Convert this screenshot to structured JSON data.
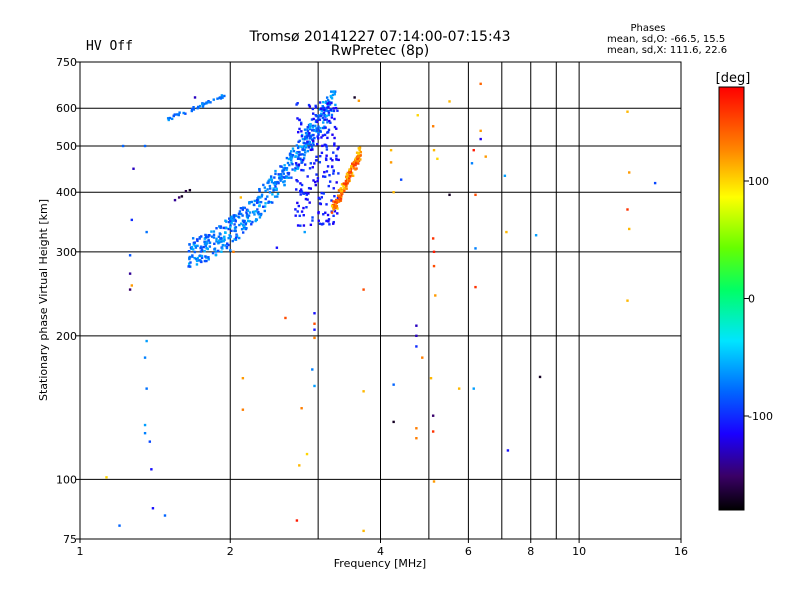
{
  "header": {
    "title_line1": "Tromsø 20141227 07:14:00-07:15:43",
    "title_line2": "RwPretec (8p)",
    "hv_status": "HV Off",
    "hv_color": "#cc0000",
    "stats_title": "Phases",
    "stats_line1": "mean, sd,O: -66.5, 15.5",
    "stats_line2": "mean, sd,X: 111.6, 22.6"
  },
  "colorbar": {
    "label": "[deg]",
    "min": -180,
    "max": 180,
    "ticks": [
      {
        "value": 100,
        "label": "100"
      },
      {
        "value": 0,
        "label": "0"
      },
      {
        "value": -100,
        "label": "-100"
      }
    ]
  },
  "chart_data": {
    "type": "scatter",
    "title": "Tromsø 20141227 07:14:00-07:15:43",
    "subtitle": "RwPretec (8p)",
    "xlabel": "Frequency [MHz]",
    "ylabel": "Stationary phase Virtual Height [km]",
    "x_scale": "log",
    "y_scale": "log",
    "xlim": [
      1,
      16
    ],
    "ylim": [
      75,
      750
    ],
    "x_ticks": [
      1,
      2,
      4,
      6,
      8,
      10,
      16
    ],
    "y_ticks": [
      75,
      100,
      200,
      300,
      400,
      500,
      600,
      750
    ],
    "x_grid": [
      1,
      2,
      3,
      4,
      5,
      6,
      7,
      8,
      9,
      10,
      16
    ],
    "y_grid": [
      100,
      200,
      300,
      400,
      500,
      600
    ],
    "color_variable": "phase [deg]",
    "color_range": [
      -180,
      180
    ],
    "clusters": [
      {
        "description": "O-trace lower",
        "x_range": [
          1.65,
          3.25
        ],
        "y_range": [
          300,
          640
        ],
        "phase_range": [
          -95,
          -50
        ],
        "count": 520
      },
      {
        "description": "O-trace dense core",
        "x_range": [
          2.7,
          3.3
        ],
        "y_range": [
          340,
          620
        ],
        "phase_range": [
          -120,
          -90
        ],
        "count": 200
      },
      {
        "description": "X-trace",
        "x_range": [
          3.2,
          3.65
        ],
        "y_range": [
          355,
          500
        ],
        "phase_range": [
          100,
          160
        ],
        "count": 160
      },
      {
        "description": "upper O-trace fragment",
        "x_range": [
          1.5,
          1.95
        ],
        "y_range": [
          570,
          640
        ],
        "phase_range": [
          -90,
          -60
        ],
        "count": 40
      }
    ],
    "points": [
      {
        "x": 1.22,
        "y": 500,
        "phase": -80
      },
      {
        "x": 1.28,
        "y": 448,
        "phase": -130
      },
      {
        "x": 1.35,
        "y": 500,
        "phase": -80
      },
      {
        "x": 1.27,
        "y": 350,
        "phase": -100
      },
      {
        "x": 1.36,
        "y": 330,
        "phase": -75
      },
      {
        "x": 1.26,
        "y": 295,
        "phase": -85
      },
      {
        "x": 1.26,
        "y": 270,
        "phase": -140
      },
      {
        "x": 1.27,
        "y": 255,
        "phase": 120
      },
      {
        "x": 1.26,
        "y": 250,
        "phase": -150
      },
      {
        "x": 1.36,
        "y": 195,
        "phase": -60
      },
      {
        "x": 1.35,
        "y": 180,
        "phase": -70
      },
      {
        "x": 1.36,
        "y": 155,
        "phase": -75
      },
      {
        "x": 1.35,
        "y": 130,
        "phase": -60
      },
      {
        "x": 1.35,
        "y": 125,
        "phase": -70
      },
      {
        "x": 1.38,
        "y": 120,
        "phase": -90
      },
      {
        "x": 1.39,
        "y": 105,
        "phase": -110
      },
      {
        "x": 1.13,
        "y": 101,
        "phase": 100
      },
      {
        "x": 1.4,
        "y": 87,
        "phase": -110
      },
      {
        "x": 1.48,
        "y": 84,
        "phase": -80
      },
      {
        "x": 1.2,
        "y": 80,
        "phase": -80
      },
      {
        "x": 1.55,
        "y": 385,
        "phase": -140
      },
      {
        "x": 1.58,
        "y": 390,
        "phase": -150
      },
      {
        "x": 1.6,
        "y": 392,
        "phase": -170
      },
      {
        "x": 1.63,
        "y": 402,
        "phase": -160
      },
      {
        "x": 1.66,
        "y": 404,
        "phase": -170
      },
      {
        "x": 1.7,
        "y": 632,
        "phase": -130
      },
      {
        "x": 2.1,
        "y": 390,
        "phase": 110
      },
      {
        "x": 2.03,
        "y": 300,
        "phase": 130
      },
      {
        "x": 2.48,
        "y": 306,
        "phase": -110
      },
      {
        "x": 2.0,
        "y": 302,
        "phase": -70
      },
      {
        "x": 2.82,
        "y": 330,
        "phase": -60
      },
      {
        "x": 2.95,
        "y": 223,
        "phase": -110
      },
      {
        "x": 2.95,
        "y": 212,
        "phase": 150
      },
      {
        "x": 2.95,
        "y": 206,
        "phase": -110
      },
      {
        "x": 2.95,
        "y": 198,
        "phase": 130
      },
      {
        "x": 2.58,
        "y": 218,
        "phase": 150
      },
      {
        "x": 2.92,
        "y": 170,
        "phase": -70
      },
      {
        "x": 2.95,
        "y": 157,
        "phase": -60
      },
      {
        "x": 2.12,
        "y": 163,
        "phase": 120
      },
      {
        "x": 2.12,
        "y": 140,
        "phase": 130
      },
      {
        "x": 2.78,
        "y": 141,
        "phase": 130
      },
      {
        "x": 2.75,
        "y": 107,
        "phase": 110
      },
      {
        "x": 2.85,
        "y": 113,
        "phase": 100
      },
      {
        "x": 2.72,
        "y": 82,
        "phase": 170
      },
      {
        "x": 3.55,
        "y": 632,
        "phase": -170
      },
      {
        "x": 3.62,
        "y": 622,
        "phase": 120
      },
      {
        "x": 3.7,
        "y": 250,
        "phase": 150
      },
      {
        "x": 3.7,
        "y": 153,
        "phase": 110
      },
      {
        "x": 3.7,
        "y": 78,
        "phase": 110
      },
      {
        "x": 4.2,
        "y": 490,
        "phase": 110
      },
      {
        "x": 4.2,
        "y": 462,
        "phase": 120
      },
      {
        "x": 4.4,
        "y": 425,
        "phase": -90
      },
      {
        "x": 4.25,
        "y": 400,
        "phase": 110
      },
      {
        "x": 4.25,
        "y": 158,
        "phase": -80
      },
      {
        "x": 4.25,
        "y": 132,
        "phase": -170
      },
      {
        "x": 4.75,
        "y": 580,
        "phase": 100
      },
      {
        "x": 4.72,
        "y": 210,
        "phase": -130
      },
      {
        "x": 4.72,
        "y": 200,
        "phase": -130
      },
      {
        "x": 4.72,
        "y": 190,
        "phase": -100
      },
      {
        "x": 4.85,
        "y": 180,
        "phase": 130
      },
      {
        "x": 4.72,
        "y": 128,
        "phase": 130
      },
      {
        "x": 4.72,
        "y": 122,
        "phase": 130
      },
      {
        "x": 5.1,
        "y": 550,
        "phase": 130
      },
      {
        "x": 5.12,
        "y": 490,
        "phase": 110
      },
      {
        "x": 5.2,
        "y": 470,
        "phase": 100
      },
      {
        "x": 5.1,
        "y": 320,
        "phase": 160
      },
      {
        "x": 5.12,
        "y": 300,
        "phase": 170
      },
      {
        "x": 5.12,
        "y": 280,
        "phase": 150
      },
      {
        "x": 5.15,
        "y": 243,
        "phase": 120
      },
      {
        "x": 5.05,
        "y": 163,
        "phase": 110
      },
      {
        "x": 5.1,
        "y": 136,
        "phase": -150
      },
      {
        "x": 5.1,
        "y": 126,
        "phase": 160
      },
      {
        "x": 5.12,
        "y": 99,
        "phase": 120
      },
      {
        "x": 5.5,
        "y": 620,
        "phase": 110
      },
      {
        "x": 5.5,
        "y": 395,
        "phase": -170
      },
      {
        "x": 5.75,
        "y": 155,
        "phase": 110
      },
      {
        "x": 6.1,
        "y": 460,
        "phase": -70
      },
      {
        "x": 6.15,
        "y": 490,
        "phase": 170
      },
      {
        "x": 6.2,
        "y": 395,
        "phase": 150
      },
      {
        "x": 6.2,
        "y": 305,
        "phase": -70
      },
      {
        "x": 6.2,
        "y": 253,
        "phase": 160
      },
      {
        "x": 6.15,
        "y": 155,
        "phase": -60
      },
      {
        "x": 6.35,
        "y": 675,
        "phase": 140
      },
      {
        "x": 6.35,
        "y": 538,
        "phase": 120
      },
      {
        "x": 6.35,
        "y": 517,
        "phase": -120
      },
      {
        "x": 6.5,
        "y": 475,
        "phase": 120
      },
      {
        "x": 7.1,
        "y": 433,
        "phase": -60
      },
      {
        "x": 7.15,
        "y": 330,
        "phase": 110
      },
      {
        "x": 7.2,
        "y": 115,
        "phase": -110
      },
      {
        "x": 8.2,
        "y": 325,
        "phase": -60
      },
      {
        "x": 8.35,
        "y": 164,
        "phase": -170
      },
      {
        "x": 12.5,
        "y": 590,
        "phase": 110
      },
      {
        "x": 12.6,
        "y": 440,
        "phase": 120
      },
      {
        "x": 12.5,
        "y": 368,
        "phase": 160
      },
      {
        "x": 12.6,
        "y": 335,
        "phase": 110
      },
      {
        "x": 12.5,
        "y": 237,
        "phase": 110
      },
      {
        "x": 14.2,
        "y": 418,
        "phase": -90
      }
    ]
  }
}
